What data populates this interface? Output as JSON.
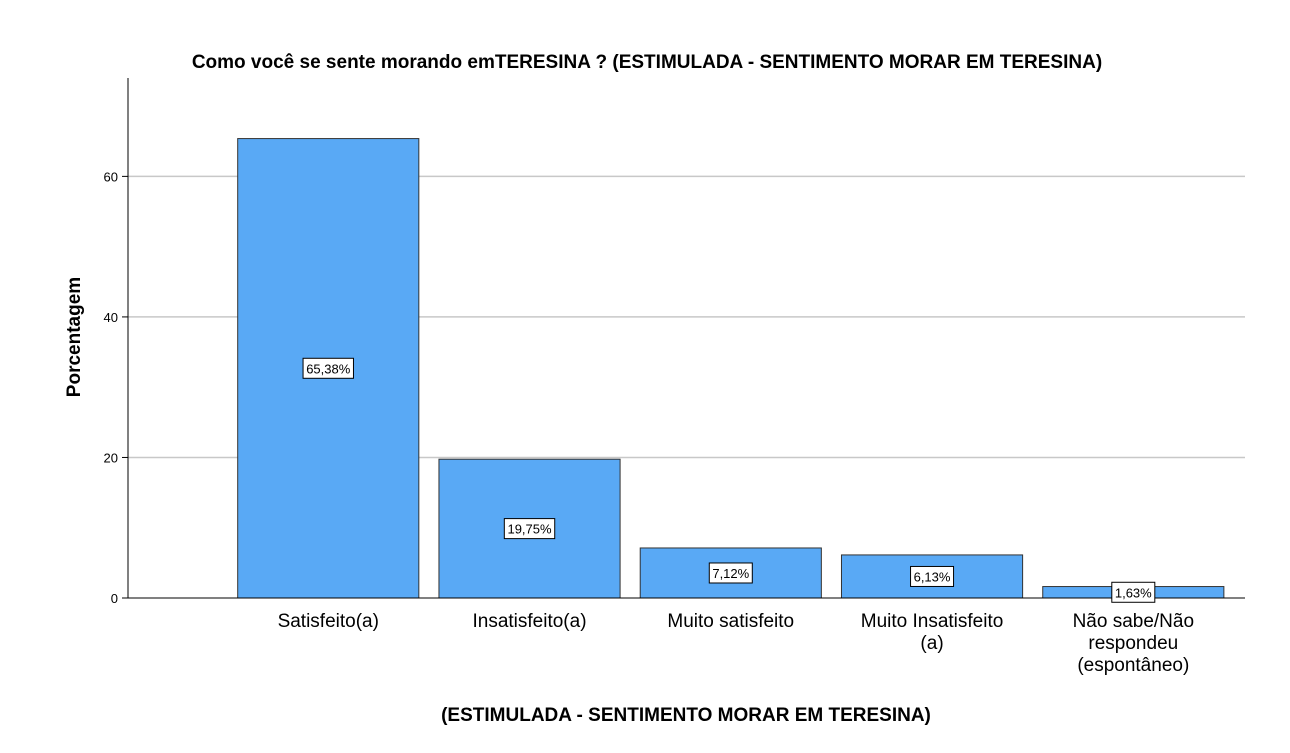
{
  "chart_data": {
    "type": "bar",
    "title": "Como você se sente morando emTERESINA ? (ESTIMULADA - SENTIMENTO MORAR EM TERESINA)",
    "xlabel": "(ESTIMULADA - SENTIMENTO MORAR EM TERESINA)",
    "ylabel": "Porcentagem",
    "ylim": [
      0,
      74
    ],
    "yticks": [
      0,
      20,
      40,
      60
    ],
    "grid": true,
    "categories": [
      [
        "Satisfeito(a)"
      ],
      [
        "Insatisfeito(a)"
      ],
      [
        "Muito satisfeito"
      ],
      [
        "Muito Insatisfeito",
        "(a)"
      ],
      [
        "Não sabe/Não",
        "respondeu",
        "(espontâneo)"
      ]
    ],
    "values": [
      65.38,
      19.75,
      7.12,
      6.13,
      1.63
    ],
    "data_labels": [
      "65,38%",
      "19,75%",
      "7,12%",
      "6,13%",
      "1,63%"
    ],
    "colors": {
      "bar": "#59a9f5",
      "bar_stroke": "#333333",
      "grid": "#c8c8c8",
      "axis": "#000000"
    }
  }
}
